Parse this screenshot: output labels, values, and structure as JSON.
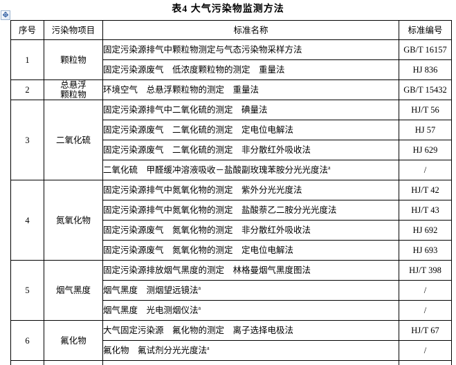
{
  "page": {
    "title": "表4  大气污染物监测方法"
  },
  "icons": {
    "table_move_handle": "four-direction-move-cross"
  },
  "table": {
    "headers": [
      "序号",
      "污染物项目",
      "标准名称",
      "标准编号"
    ],
    "footnote_marker": "a",
    "groups": [
      {
        "no": "1",
        "pollutant": "颗粒物",
        "methods": [
          {
            "name": "固定污染源排气中颗粒物测定与气态污染物采样方法",
            "code": "GB/T 16157"
          },
          {
            "name": "固定污染源废气　低浓度颗粒物的测定　重量法",
            "code": "HJ 836"
          }
        ]
      },
      {
        "no": "2",
        "pollutant": "总悬浮\n颗粒物",
        "methods": [
          {
            "name": "环境空气　总悬浮颗粒物的测定　重量法",
            "code": "GB/T 15432"
          }
        ]
      },
      {
        "no": "3",
        "pollutant": "二氧化硫",
        "methods": [
          {
            "name": "固定污染源排气中二氧化硫的测定　碘量法",
            "code": "HJ/T 56"
          },
          {
            "name": "固定污染源废气　二氧化硫的测定　定电位电解法",
            "code": "HJ 57"
          },
          {
            "name": "固定污染源废气　二氧化硫的测定　非分散红外吸收法",
            "code": "HJ 629"
          },
          {
            "name": "二氧化硫　甲醛缓冲溶液吸收－盐酸副玫瑰苯胺分光光度法",
            "sup": "a",
            "code": "/"
          }
        ]
      },
      {
        "no": "4",
        "pollutant": "氮氧化物",
        "methods": [
          {
            "name": "固定污染源排气中氮氧化物的测定　紫外分光光度法",
            "code": "HJ/T 42"
          },
          {
            "name": "固定污染源排气中氮氧化物的测定　盐酸萘乙二胺分光光度法",
            "code": "HJ/T 43"
          },
          {
            "name": "固定污染源废气　氮氧化物的测定　非分散红外吸收法",
            "code": "HJ 692"
          },
          {
            "name": "固定污染源废气　氮氧化物的测定　定电位电解法",
            "code": "HJ 693"
          }
        ]
      },
      {
        "no": "5",
        "pollutant": "烟气黑度",
        "methods": [
          {
            "name": "固定污染源排放烟气黑度的测定　林格曼烟气黑度图法",
            "code": "HJ/T 398"
          },
          {
            "name": "烟气黑度　测烟望远镜法",
            "sup": "a",
            "code": "/"
          },
          {
            "name": "烟气黑度　光电测烟仪法",
            "sup": "a",
            "code": "/"
          }
        ]
      },
      {
        "no": "6",
        "pollutant": "氟化物",
        "methods": [
          {
            "name": "大气固定污染源　氟化物的测定　离子选择电极法",
            "code": "HJ/T 67"
          },
          {
            "name": "氟化物　氟试剂分光光度法",
            "sup": "a",
            "code": "/"
          }
        ]
      }
    ]
  }
}
